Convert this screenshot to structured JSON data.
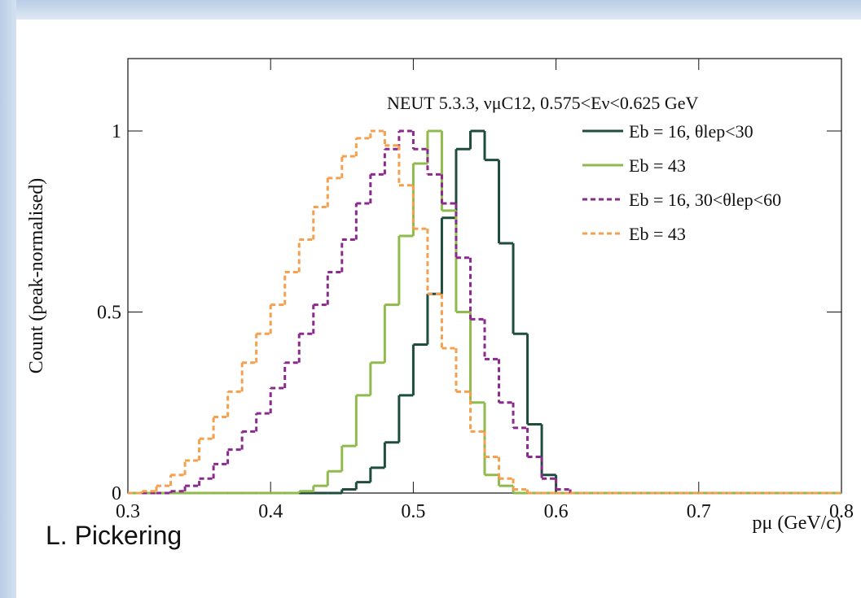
{
  "chart_data": {
    "type": "histogram",
    "title": "NEUT 5.3.3, νμC12, 0.575<Eν<0.625 GeV",
    "x_label": "pμ (GeV/c)",
    "y_label": "Count (peak-normalised)",
    "bins": [
      0.3,
      0.31,
      0.32,
      0.33,
      0.34,
      0.35,
      0.36,
      0.37,
      0.38,
      0.39,
      0.4,
      0.41,
      0.42,
      0.43,
      0.44,
      0.45,
      0.46,
      0.47,
      0.48,
      0.49,
      0.5,
      0.51,
      0.52,
      0.53,
      0.54,
      0.55,
      0.56,
      0.57,
      0.58,
      0.59,
      0.6,
      0.61,
      0.62,
      0.63,
      0.64,
      0.65,
      0.66,
      0.67,
      0.68,
      0.69,
      0.7,
      0.71,
      0.72,
      0.73,
      0.74,
      0.75,
      0.76,
      0.77,
      0.78,
      0.79,
      0.8
    ],
    "series": [
      {
        "name": "Eb = 16, θlep<30",
        "color": "#1f4d3d",
        "dashed": false,
        "values": [
          0,
          0,
          0,
          0,
          0,
          0,
          0,
          0,
          0,
          0,
          0,
          0,
          0,
          0,
          0,
          0.01,
          0.03,
          0.07,
          0.14,
          0.27,
          0.41,
          0.55,
          0.76,
          0.95,
          1.0,
          0.92,
          0.69,
          0.44,
          0.19,
          0.05,
          0,
          0,
          0,
          0,
          0,
          0,
          0,
          0,
          0,
          0,
          0,
          0,
          0,
          0,
          0,
          0,
          0,
          0,
          0,
          0
        ]
      },
      {
        "name": "Eb = 43",
        "color": "#8fbb4c",
        "dashed": false,
        "values": [
          0,
          0,
          0,
          0,
          0,
          0,
          0,
          0,
          0,
          0,
          0,
          0,
          0.005,
          0.02,
          0.06,
          0.13,
          0.27,
          0.36,
          0.52,
          0.71,
          0.91,
          1.0,
          0.78,
          0.5,
          0.25,
          0.05,
          0.02,
          0,
          0,
          0,
          0,
          0,
          0,
          0,
          0,
          0,
          0,
          0,
          0,
          0,
          0,
          0,
          0,
          0,
          0,
          0,
          0,
          0,
          0,
          0
        ]
      },
      {
        "name": "Eb = 16, 30<θlep<60",
        "color": "#8a2a8c",
        "dashed": true,
        "values": [
          0,
          0,
          0,
          0.005,
          0.02,
          0.04,
          0.08,
          0.12,
          0.17,
          0.22,
          0.29,
          0.36,
          0.44,
          0.52,
          0.61,
          0.7,
          0.8,
          0.88,
          0.95,
          1.0,
          0.95,
          0.88,
          0.8,
          0.65,
          0.48,
          0.37,
          0.25,
          0.18,
          0.1,
          0.04,
          0.01,
          0,
          0,
          0,
          0,
          0,
          0,
          0,
          0,
          0,
          0,
          0,
          0,
          0,
          0,
          0,
          0,
          0,
          0,
          0
        ]
      },
      {
        "name": "Eb = 43",
        "color": "#f5a04e",
        "dashed": true,
        "values": [
          0,
          0.005,
          0.02,
          0.05,
          0.09,
          0.15,
          0.21,
          0.28,
          0.36,
          0.44,
          0.52,
          0.61,
          0.7,
          0.79,
          0.87,
          0.93,
          0.98,
          1.0,
          0.96,
          0.85,
          0.73,
          0.55,
          0.4,
          0.28,
          0.17,
          0.1,
          0.04,
          0.01,
          0,
          0,
          0,
          0,
          0,
          0,
          0,
          0,
          0,
          0,
          0,
          0,
          0,
          0,
          0,
          0,
          0,
          0,
          0,
          0,
          0,
          0
        ]
      }
    ],
    "xlim": [
      0.3,
      0.8
    ],
    "xticks": [
      0.3,
      0.4,
      0.5,
      0.6,
      0.7,
      0.8
    ],
    "ylim": [
      0,
      1.2
    ],
    "yticks": [
      0,
      0.5,
      1
    ],
    "legend": "upper right"
  },
  "author": "L. Pickering"
}
